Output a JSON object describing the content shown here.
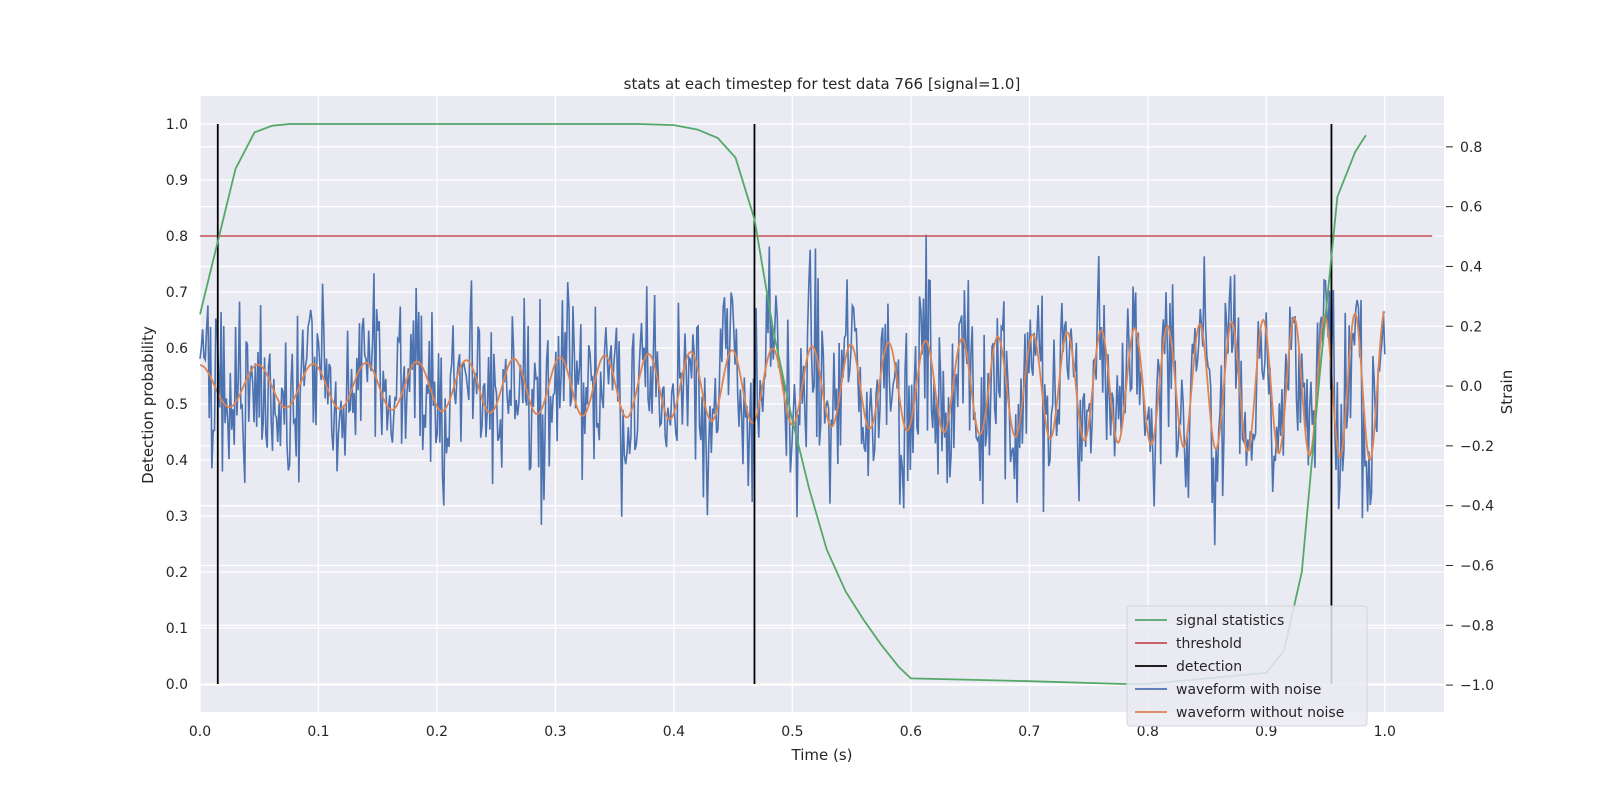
{
  "chart_data": {
    "type": "line",
    "title": "stats at each timestep for test data 766 [signal=1.0]",
    "xlabel": "Time (s)",
    "ylabel_left": "Detection probability",
    "ylabel_right": "Strain",
    "xlim": [
      0.0,
      1.05
    ],
    "ylim_left": [
      -0.05,
      1.05
    ],
    "ylim_right": [
      -1.09,
      0.97
    ],
    "x_ticks": [
      "0.0",
      "0.1",
      "0.2",
      "0.3",
      "0.4",
      "0.5",
      "0.6",
      "0.7",
      "0.8",
      "0.9",
      "1.0"
    ],
    "x_tick_values": [
      0.0,
      0.1,
      0.2,
      0.3,
      0.4,
      0.5,
      0.6,
      0.7,
      0.8,
      0.9,
      1.0
    ],
    "y_ticks_left": [
      "0.0",
      "0.1",
      "0.2",
      "0.3",
      "0.4",
      "0.5",
      "0.6",
      "0.7",
      "0.8",
      "0.9",
      "1.0"
    ],
    "y_tick_values_left": [
      0.0,
      0.1,
      0.2,
      0.3,
      0.4,
      0.5,
      0.6,
      0.7,
      0.8,
      0.9,
      1.0
    ],
    "y_ticks_right": [
      "−1.0",
      "−0.8",
      "−0.6",
      "−0.4",
      "−0.2",
      "0.0",
      "0.2",
      "0.4",
      "0.6",
      "0.8"
    ],
    "y_tick_values_right": [
      -1.0,
      -0.8,
      -0.6,
      -0.4,
      -0.2,
      0.0,
      0.2,
      0.4,
      0.6,
      0.8
    ],
    "grid": true,
    "legend_position": "bottom-right",
    "legend": [
      "signal statistics",
      "threshold",
      "detection",
      "waveform with noise",
      "waveform without noise"
    ],
    "colors": {
      "signal_statistics": "#55a868",
      "threshold": "#c44e52",
      "detection": "#000000",
      "waveform_noise": "#4c72b0",
      "waveform_clean": "#dd8452",
      "background": "#eaeaf2",
      "grid": "#ffffff"
    },
    "signal_statistics": {
      "x": [
        0.0,
        0.015,
        0.03,
        0.046,
        0.061,
        0.076,
        0.1,
        0.2,
        0.3,
        0.37,
        0.4,
        0.42,
        0.437,
        0.452,
        0.468,
        0.484,
        0.499,
        0.514,
        0.529,
        0.545,
        0.56,
        0.575,
        0.59,
        0.6,
        0.7,
        0.78,
        0.8,
        0.9,
        0.915,
        0.93,
        0.945,
        0.96,
        0.975,
        0.984
      ],
      "y": [
        0.66,
        0.79,
        0.92,
        0.985,
        0.997,
        1.0,
        1.0,
        1.0,
        1.0,
        1.0,
        0.998,
        0.99,
        0.975,
        0.94,
        0.83,
        0.63,
        0.48,
        0.35,
        0.24,
        0.165,
        0.115,
        0.07,
        0.03,
        0.01,
        0.005,
        0.0,
        0.0,
        0.02,
        0.06,
        0.2,
        0.55,
        0.87,
        0.95,
        0.98
      ]
    },
    "threshold": {
      "y": 0.8,
      "x_range": [
        0.0,
        1.04
      ]
    },
    "detections": {
      "x": [
        0.015,
        0.468,
        0.955
      ],
      "y_range": [
        0.0,
        1.0
      ]
    },
    "waveform_without_noise": {
      "x_range": [
        0.0,
        1.0
      ],
      "amplitude_range": [
        0.07,
        0.25
      ],
      "frequency_range_hz": [
        20,
        40
      ]
    },
    "waveform_with_noise": {
      "x_range": [
        0.0,
        1.0
      ],
      "n_points": 900,
      "noise_std_strain": 0.26
    }
  }
}
